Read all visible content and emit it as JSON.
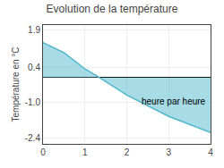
{
  "chart_data": {
    "type": "area",
    "title": "Evolution de la température",
    "y_label": "Température en °C",
    "x": [
      0,
      0.5,
      1.0,
      1.3,
      2.0,
      3.0,
      4.0
    ],
    "values": [
      1.4,
      1.0,
      0.35,
      0.05,
      -0.7,
      -1.55,
      -2.2
    ],
    "color": "#50b8cc",
    "xlim": [
      0,
      4
    ],
    "xticks": [
      0,
      1,
      2,
      3,
      4
    ],
    "ylim": [
      -2.65,
      2.1
    ],
    "yticks": [
      1.9,
      0.4,
      {
        "value": -1.0,
        "label": "-1.0"
      },
      -2.4
    ],
    "grid": true,
    "annotations": [
      {
        "text": "heure par heure",
        "x": 2.3,
        "y": -0.7
      }
    ]
  }
}
